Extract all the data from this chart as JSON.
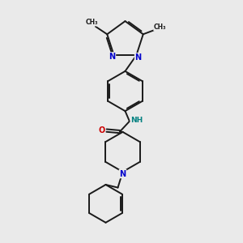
{
  "background_color": "#eaeaea",
  "bond_color": "#1a1a1a",
  "N_color": "#0000cc",
  "O_color": "#cc0000",
  "H_color": "#008080",
  "bond_width": 1.4,
  "figsize": [
    3.0,
    3.0
  ],
  "dpi": 100,
  "xlim": [
    0,
    10
  ],
  "ylim": [
    0,
    10
  ]
}
